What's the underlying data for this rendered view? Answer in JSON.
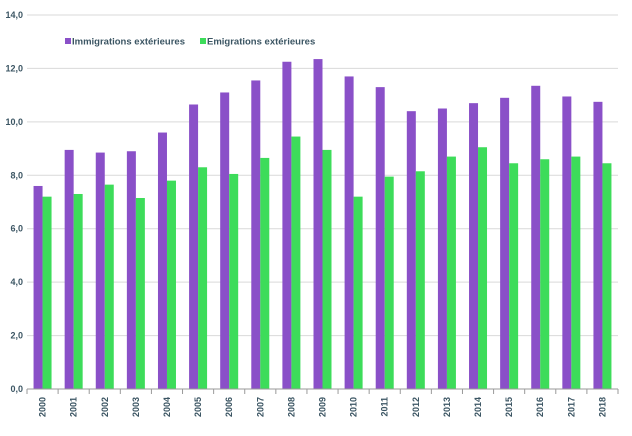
{
  "chart_data": {
    "type": "bar",
    "title": "",
    "xlabel": "",
    "ylabel": "",
    "ylim": [
      0,
      14
    ],
    "yticks": [
      0,
      2,
      4,
      6,
      8,
      10,
      12,
      14
    ],
    "ytick_labels": [
      "0,0",
      "2,0",
      "4,0",
      "6,0",
      "8,0",
      "10,0",
      "12,0",
      "14,0"
    ],
    "grid": "horizontal",
    "legend_position": "top-left",
    "categories": [
      "2000",
      "2001",
      "2002",
      "2003",
      "2004",
      "2005",
      "2006",
      "2007",
      "2008",
      "2009",
      "2010",
      "2011",
      "2012",
      "2013",
      "2014",
      "2015",
      "2016",
      "2017",
      "2018"
    ],
    "series": [
      {
        "name": "Immigrations extérieures",
        "color": "#8a50c8",
        "values": [
          7.6,
          8.95,
          8.85,
          8.9,
          9.6,
          10.65,
          11.1,
          11.55,
          12.25,
          12.35,
          11.7,
          11.3,
          10.4,
          10.5,
          10.7,
          10.9,
          11.35,
          10.95,
          10.75
        ]
      },
      {
        "name": "Emigrations extérieures",
        "color": "#3ddc5a",
        "values": [
          7.2,
          7.3,
          7.65,
          7.15,
          7.8,
          8.3,
          8.05,
          8.65,
          9.45,
          8.95,
          7.2,
          7.95,
          8.15,
          8.7,
          9.05,
          8.45,
          8.6,
          8.7,
          8.45
        ]
      }
    ]
  }
}
